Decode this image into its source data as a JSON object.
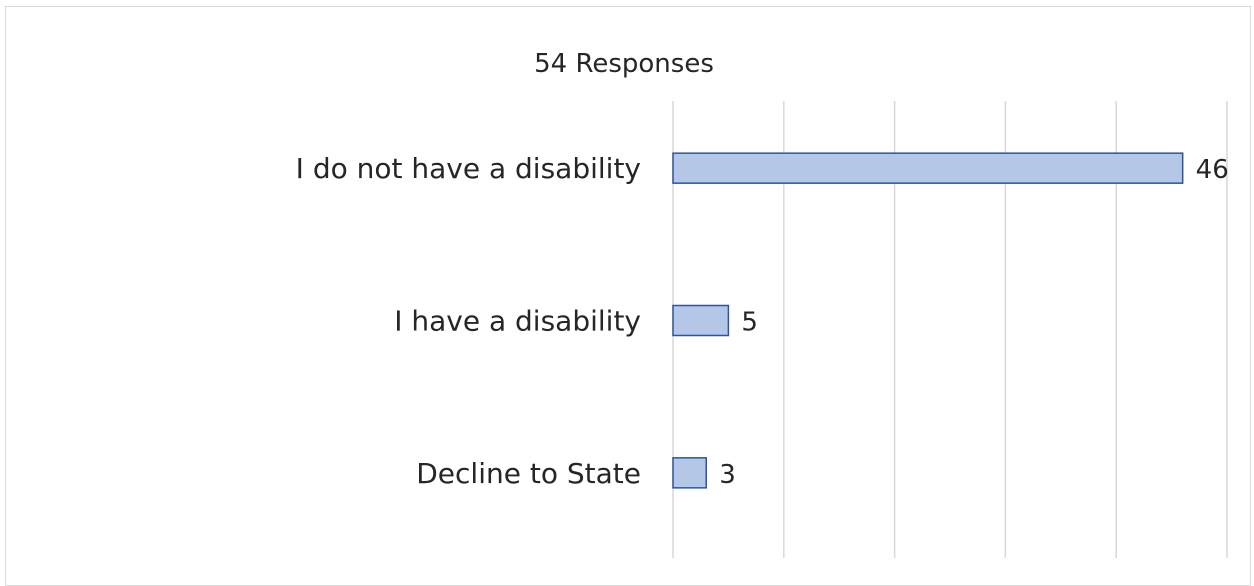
{
  "chart_data": {
    "type": "bar",
    "orientation": "horizontal",
    "title": "54 Responses",
    "categories": [
      "I do not have a disability",
      "I have a disability",
      "Decline to State"
    ],
    "values": [
      46,
      5,
      3
    ],
    "data_labels": [
      "46",
      "5",
      "3"
    ],
    "xlim": [
      0,
      50
    ],
    "xlabel": "",
    "ylabel": "",
    "grid": true,
    "x_tick_labels_shown": false,
    "legend": "none",
    "bar_color": "#b4c7e7",
    "bar_border_color": "#2f5597",
    "grid_color": "#d9d9d9"
  }
}
